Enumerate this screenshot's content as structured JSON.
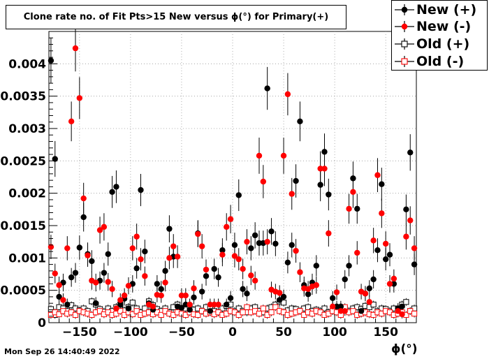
{
  "chart_data": {
    "type": "scatter",
    "title": "Clone rate no. of Fit Pts>15 New versus ϕ(°) for Primary(+)",
    "xlabel": "ϕ(°)",
    "ylabel": "",
    "xlim": [
      -180,
      180
    ],
    "ylim": [
      0,
      0.0045
    ],
    "xticks": [
      -150,
      -100,
      -50,
      0,
      50,
      100,
      150
    ],
    "xtick_labels": [
      "−150",
      "−100",
      "−50",
      "0",
      "50",
      "100",
      "150"
    ],
    "yticks": [
      0,
      0.0005,
      0.001,
      0.0015,
      0.002,
      0.0025,
      0.003,
      0.0035,
      0.004
    ],
    "ytick_labels": [
      "0",
      "0.0005",
      "0.001",
      "0.0015",
      "0.002",
      "0.0025",
      "0.003",
      "0.0035",
      "0.004"
    ],
    "grid": true,
    "legend_position": "top-right",
    "x": [
      -178,
      -174,
      -170,
      -166,
      -162,
      -158,
      -154,
      -150,
      -146,
      -142,
      -138,
      -134,
      -130,
      -126,
      -122,
      -118,
      -114,
      -110,
      -106,
      -102,
      -98,
      -94,
      -90,
      -86,
      -82,
      -78,
      -74,
      -70,
      -66,
      -62,
      -58,
      -54,
      -50,
      -46,
      -42,
      -38,
      -34,
      -30,
      -26,
      -22,
      -18,
      -14,
      -10,
      -6,
      -2,
      2,
      6,
      10,
      14,
      18,
      22,
      26,
      30,
      34,
      38,
      42,
      46,
      50,
      54,
      58,
      62,
      66,
      70,
      74,
      78,
      82,
      86,
      90,
      94,
      98,
      102,
      106,
      110,
      114,
      118,
      122,
      126,
      130,
      134,
      138,
      142,
      146,
      150,
      154,
      158,
      162,
      166,
      170,
      174,
      178
    ],
    "series": [
      {
        "name": "New (+)",
        "color": "#000000",
        "marker": "filled-circle",
        "y": [
          0.00405,
          0.00253,
          0.0004,
          0.00062,
          0.00028,
          0.0007,
          0.00077,
          0.00116,
          0.00163,
          0.00106,
          0.00095,
          0.0003,
          0.00065,
          0.00077,
          0.00106,
          0.00202,
          0.0021,
          0.00028,
          0.00037,
          0.00022,
          0.0006,
          0.00084,
          0.00205,
          0.0011,
          0.0003,
          0.0002,
          0.0006,
          0.00052,
          0.0008,
          0.00145,
          0.00102,
          0.00025,
          0.00023,
          0.00028,
          0.0002,
          0.00039,
          0.00138,
          0.00048,
          0.00072,
          0.00018,
          0.00083,
          0.0007,
          0.00112,
          0.00028,
          0.00038,
          0.0012,
          0.00197,
          0.00052,
          0.00045,
          0.00115,
          0.00135,
          0.00123,
          0.00123,
          0.00362,
          0.00141,
          0.00122,
          0.00035,
          0.0004,
          0.00093,
          0.0012,
          0.00219,
          0.00311,
          0.00058,
          0.00044,
          0.00062,
          0.00088,
          0.00213,
          0.00264,
          0.00198,
          0.00038,
          0.00025,
          0.00025,
          0.00067,
          0.00088,
          0.00223,
          0.00176,
          0.00018,
          0.00045,
          0.00053,
          0.00067,
          0.00112,
          0.00214,
          0.00098,
          0.00105,
          0.0006,
          0.00022,
          0.00025,
          0.00175,
          0.00263,
          0.0009
        ]
      },
      {
        "name": "New (-)",
        "color": "#ff0000",
        "marker": "filled-circle",
        "y": [
          0.00117,
          0.00076,
          0.00058,
          0.00035,
          0.00115,
          0.00311,
          0.00424,
          0.00347,
          0.00192,
          0.00104,
          0.00065,
          0.00062,
          0.00143,
          0.00148,
          0.00063,
          0.00052,
          0.00022,
          0.00035,
          0.00042,
          0.00057,
          0.00115,
          0.00133,
          0.00098,
          0.00072,
          0.00028,
          0.00025,
          0.00043,
          0.00042,
          0.00062,
          0.001,
          0.00118,
          0.00102,
          0.00042,
          0.00042,
          0.00028,
          0.00053,
          0.00137,
          0.00118,
          0.00082,
          0.00028,
          0.00028,
          0.00028,
          0.00105,
          0.00148,
          0.0016,
          0.00103,
          0.00098,
          0.00083,
          0.00125,
          0.00073,
          0.00065,
          0.00258,
          0.00218,
          0.00125,
          0.00051,
          0.00048,
          0.00046,
          0.00258,
          0.00353,
          0.00199,
          0.00111,
          0.00078,
          0.00053,
          0.00052,
          0.00056,
          0.00058,
          0.00238,
          0.00238,
          0.00138,
          0.00025,
          0.00047,
          0.00018,
          0.00018,
          0.00176,
          0.00202,
          0.00108,
          0.00048,
          0.00045,
          0.00032,
          0.00127,
          0.00228,
          0.00169,
          0.00122,
          0.0006,
          0.00068,
          0.00018,
          0.00013,
          0.00133,
          0.00158,
          0.00115
        ]
      },
      {
        "name": "Old (+)",
        "color": "#000000",
        "marker": "open-square",
        "y": [
          0.00021,
          0.00012,
          0.00024,
          0.00022,
          0.00018,
          0.00027,
          0.00022,
          0.00019,
          0.00022,
          0.00018,
          0.00033,
          0.00028,
          0.00021,
          0.00017,
          0.00022,
          0.00018,
          0.00024,
          0.00028,
          0.00019,
          0.00024,
          0.00031,
          0.00022,
          0.00016,
          0.00022,
          0.00033,
          0.00027,
          0.00021,
          0.00018,
          0.00022,
          0.00016,
          0.00024,
          0.00028,
          0.00018,
          0.00022,
          0.00026,
          0.0002,
          0.00022,
          0.00018,
          0.00024,
          0.00022,
          0.00018,
          0.00016,
          0.00022,
          0.00026,
          0.00028,
          0.00018,
          0.00022,
          0.00018,
          0.00016,
          0.00022,
          0.00024,
          0.00018,
          0.00016,
          0.00022,
          0.00024,
          0.00028,
          0.00033,
          0.00031,
          0.00019,
          0.00022,
          0.00021,
          0.00018,
          0.00022,
          0.00024,
          0.00018,
          0.0002,
          0.00018,
          0.00022,
          0.00016,
          0.00018,
          0.00022,
          0.00024,
          0.00021,
          0.00018,
          0.00022,
          0.00024,
          0.00021,
          0.00026,
          0.00024,
          0.00028,
          0.00018,
          0.00022,
          0.00021,
          0.00018,
          0.00022,
          0.00022,
          0.00028,
          0.00032,
          0.00018,
          0.00022
        ]
      },
      {
        "name": "Old (-)",
        "color": "#ff0000",
        "marker": "open-square",
        "y": [
          0.00012,
          0.00016,
          0.00013,
          0.00018,
          0.00014,
          0.00016,
          0.00012,
          0.00018,
          0.00016,
          0.00014,
          0.00012,
          0.00016,
          0.00018,
          0.00013,
          0.00016,
          0.00012,
          0.00014,
          0.00018,
          0.00012,
          0.00016,
          0.00013,
          0.00018,
          0.00012,
          0.00014,
          0.00016,
          0.00013,
          0.00016,
          0.00012,
          0.00018,
          0.00014,
          0.00012,
          0.00016,
          0.00014,
          0.00012,
          0.00016,
          0.00013,
          0.00012,
          0.00018,
          0.00014,
          0.00016,
          0.00013,
          0.00016,
          0.00012,
          0.00014,
          0.00018,
          0.00016,
          0.00012,
          0.00016,
          0.00024,
          0.00016,
          0.00018,
          0.00014,
          0.00022,
          0.00012,
          0.00016,
          0.00024,
          0.00018,
          0.00016,
          0.00012,
          0.00014,
          0.00016,
          0.00018,
          0.00012,
          0.00016,
          0.00014,
          0.00018,
          0.00016,
          0.00012,
          0.00014,
          0.00018,
          0.00016,
          0.00012,
          0.00024,
          0.00016,
          0.00018,
          0.00012,
          0.00014,
          0.00016,
          0.00013,
          0.00012,
          0.00016,
          0.00014,
          0.00018,
          0.00016,
          0.00012,
          0.00014,
          0.00016,
          0.00012,
          0.00018,
          0.00014
        ]
      }
    ]
  },
  "footer": {
    "timestamp": "Mon Sep 26 14:40:49 2022"
  }
}
